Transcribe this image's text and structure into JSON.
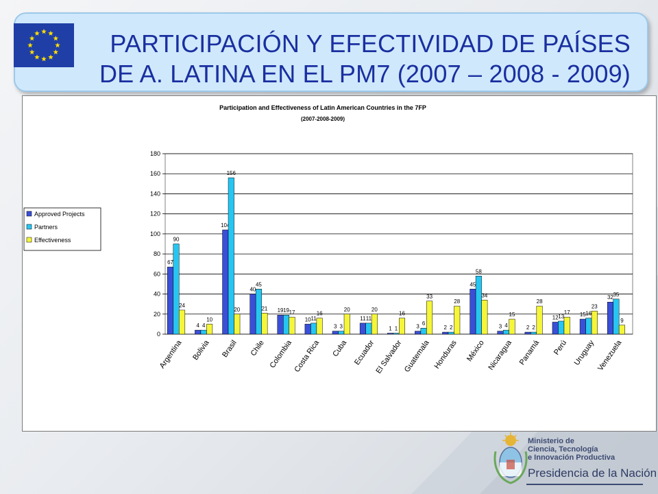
{
  "header": {
    "title_line1": "PARTICIPACIÓN Y EFECTIVIDAD DE PAÍSES",
    "title_line2": "DE A. LATINA EN EL  PM7 (2007 – 2008 - 2009)"
  },
  "logo": {
    "line1": "Ministerio de",
    "line2": "Ciencia, Tecnología",
    "line3": "e Innovación Productiva",
    "line4": "Presidencia de la Nación"
  },
  "colors": {
    "banner_text": "#1a2fa0",
    "approved": "#3a4fd8",
    "partners": "#27c6f2",
    "effectiveness": "#f5f53a"
  },
  "chart_data": {
    "type": "bar",
    "title": "Participation and Effectiveness of Latin American Countries in the 7FP",
    "subtitle": "(2007-2008-2009)",
    "xlabel": "",
    "ylabel": "",
    "ylim": [
      0,
      180
    ],
    "yticks": [
      0,
      20,
      40,
      60,
      80,
      100,
      120,
      140,
      160,
      180
    ],
    "grid": true,
    "legend_position": "left",
    "categories": [
      "Argentina",
      "Bolivia",
      "Brasil",
      "Chile",
      "Colombia",
      "Costa Rica",
      "Cuba",
      "Ecuador",
      "El Salvador",
      "Guatemala",
      "Honduras",
      "México",
      "Nicaragua",
      "Panamá",
      "Perú",
      "Uruguay",
      "Venezuela"
    ],
    "series": [
      {
        "name": "Approved Projects",
        "color": "#3a4fd8",
        "values": [
          67,
          4,
          104,
          40,
          19,
          10,
          3,
          11,
          1,
          3,
          2,
          45,
          3,
          2,
          12,
          15,
          32
        ]
      },
      {
        "name": "Partners",
        "color": "#27c6f2",
        "values": [
          90,
          4,
          156,
          45,
          19,
          11,
          3,
          11,
          1,
          6,
          2,
          58,
          4,
          2,
          13,
          16,
          35
        ]
      },
      {
        "name": "Effectiveness",
        "color": "#f5f53a",
        "values": [
          24,
          10,
          20,
          21,
          17,
          16,
          20,
          20,
          16,
          33,
          28,
          34,
          15,
          28,
          17,
          23,
          9
        ]
      }
    ]
  }
}
